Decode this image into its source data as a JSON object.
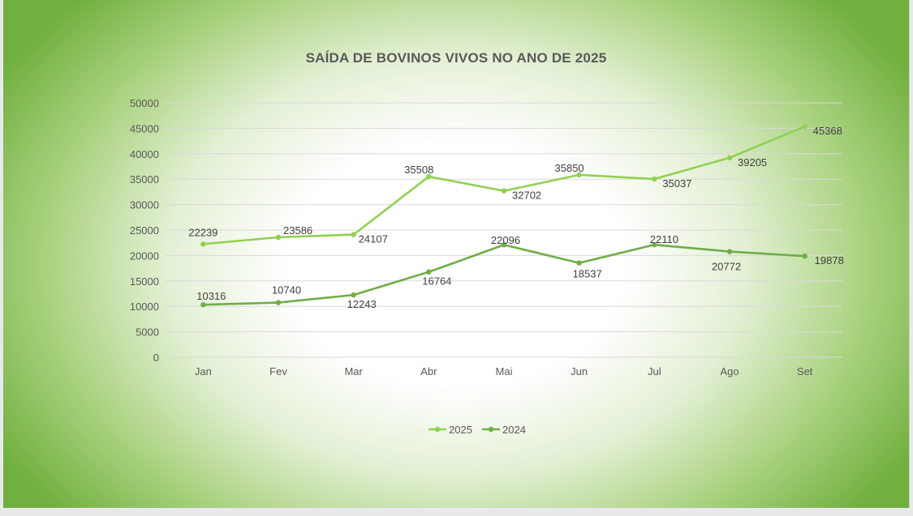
{
  "chart_data": {
    "type": "line",
    "title": "SAÍDA DE BOVINOS VIVOS NO ANO DE 2025",
    "xlabel": "",
    "ylabel": "",
    "categories": [
      "Jan",
      "Fev",
      "Mar",
      "Abr",
      "Mai",
      "Jun",
      "Jul",
      "Ago",
      "Set"
    ],
    "ylim": [
      0,
      50000
    ],
    "yticks": [
      "0",
      "5000",
      "10000",
      "15000",
      "20000",
      "25000",
      "30000",
      "35000",
      "40000",
      "45000",
      "50000"
    ],
    "grid": "horizontal",
    "legend_position": "bottom",
    "data_labels": true,
    "series": [
      {
        "name": "2025",
        "color": "#92d050",
        "values": [
          22239,
          23586,
          24107,
          35508,
          32702,
          35850,
          35037,
          39205,
          45368
        ]
      },
      {
        "name": "2024",
        "color": "#70ad47",
        "values": [
          10316,
          10740,
          12243,
          16764,
          22096,
          18537,
          22110,
          20772,
          19878
        ]
      }
    ]
  }
}
